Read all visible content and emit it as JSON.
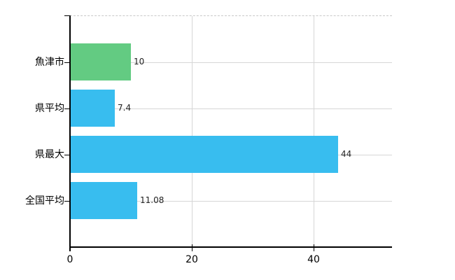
{
  "chart_data": {
    "type": "bar",
    "orientation": "horizontal",
    "title": "",
    "xlabel": "",
    "ylabel": "",
    "categories": [
      "魚津市",
      "県平均",
      "県最大",
      "全国平均"
    ],
    "values": [
      10,
      7.4,
      44,
      11.08
    ],
    "value_labels": [
      "10",
      "7.4",
      "44",
      "11.08"
    ],
    "bar_colors": [
      "#63cb82",
      "#38bdef",
      "#38bdef",
      "#38bdef"
    ],
    "x_ticks": [
      0,
      20,
      40
    ],
    "x_tick_labels": [
      "0",
      "20",
      "40"
    ],
    "xlim": [
      0,
      52.9
    ],
    "grid": true,
    "legend": false,
    "colors": {
      "highlight_bar": "#63cb82",
      "default_bar": "#38bdef",
      "gridline": "#d6d6d6",
      "top_border": "#c9c9c9",
      "axis": "#000000",
      "background": "#ffffff",
      "label_text": "#000000",
      "value_text": "#1f1f1f"
    }
  }
}
